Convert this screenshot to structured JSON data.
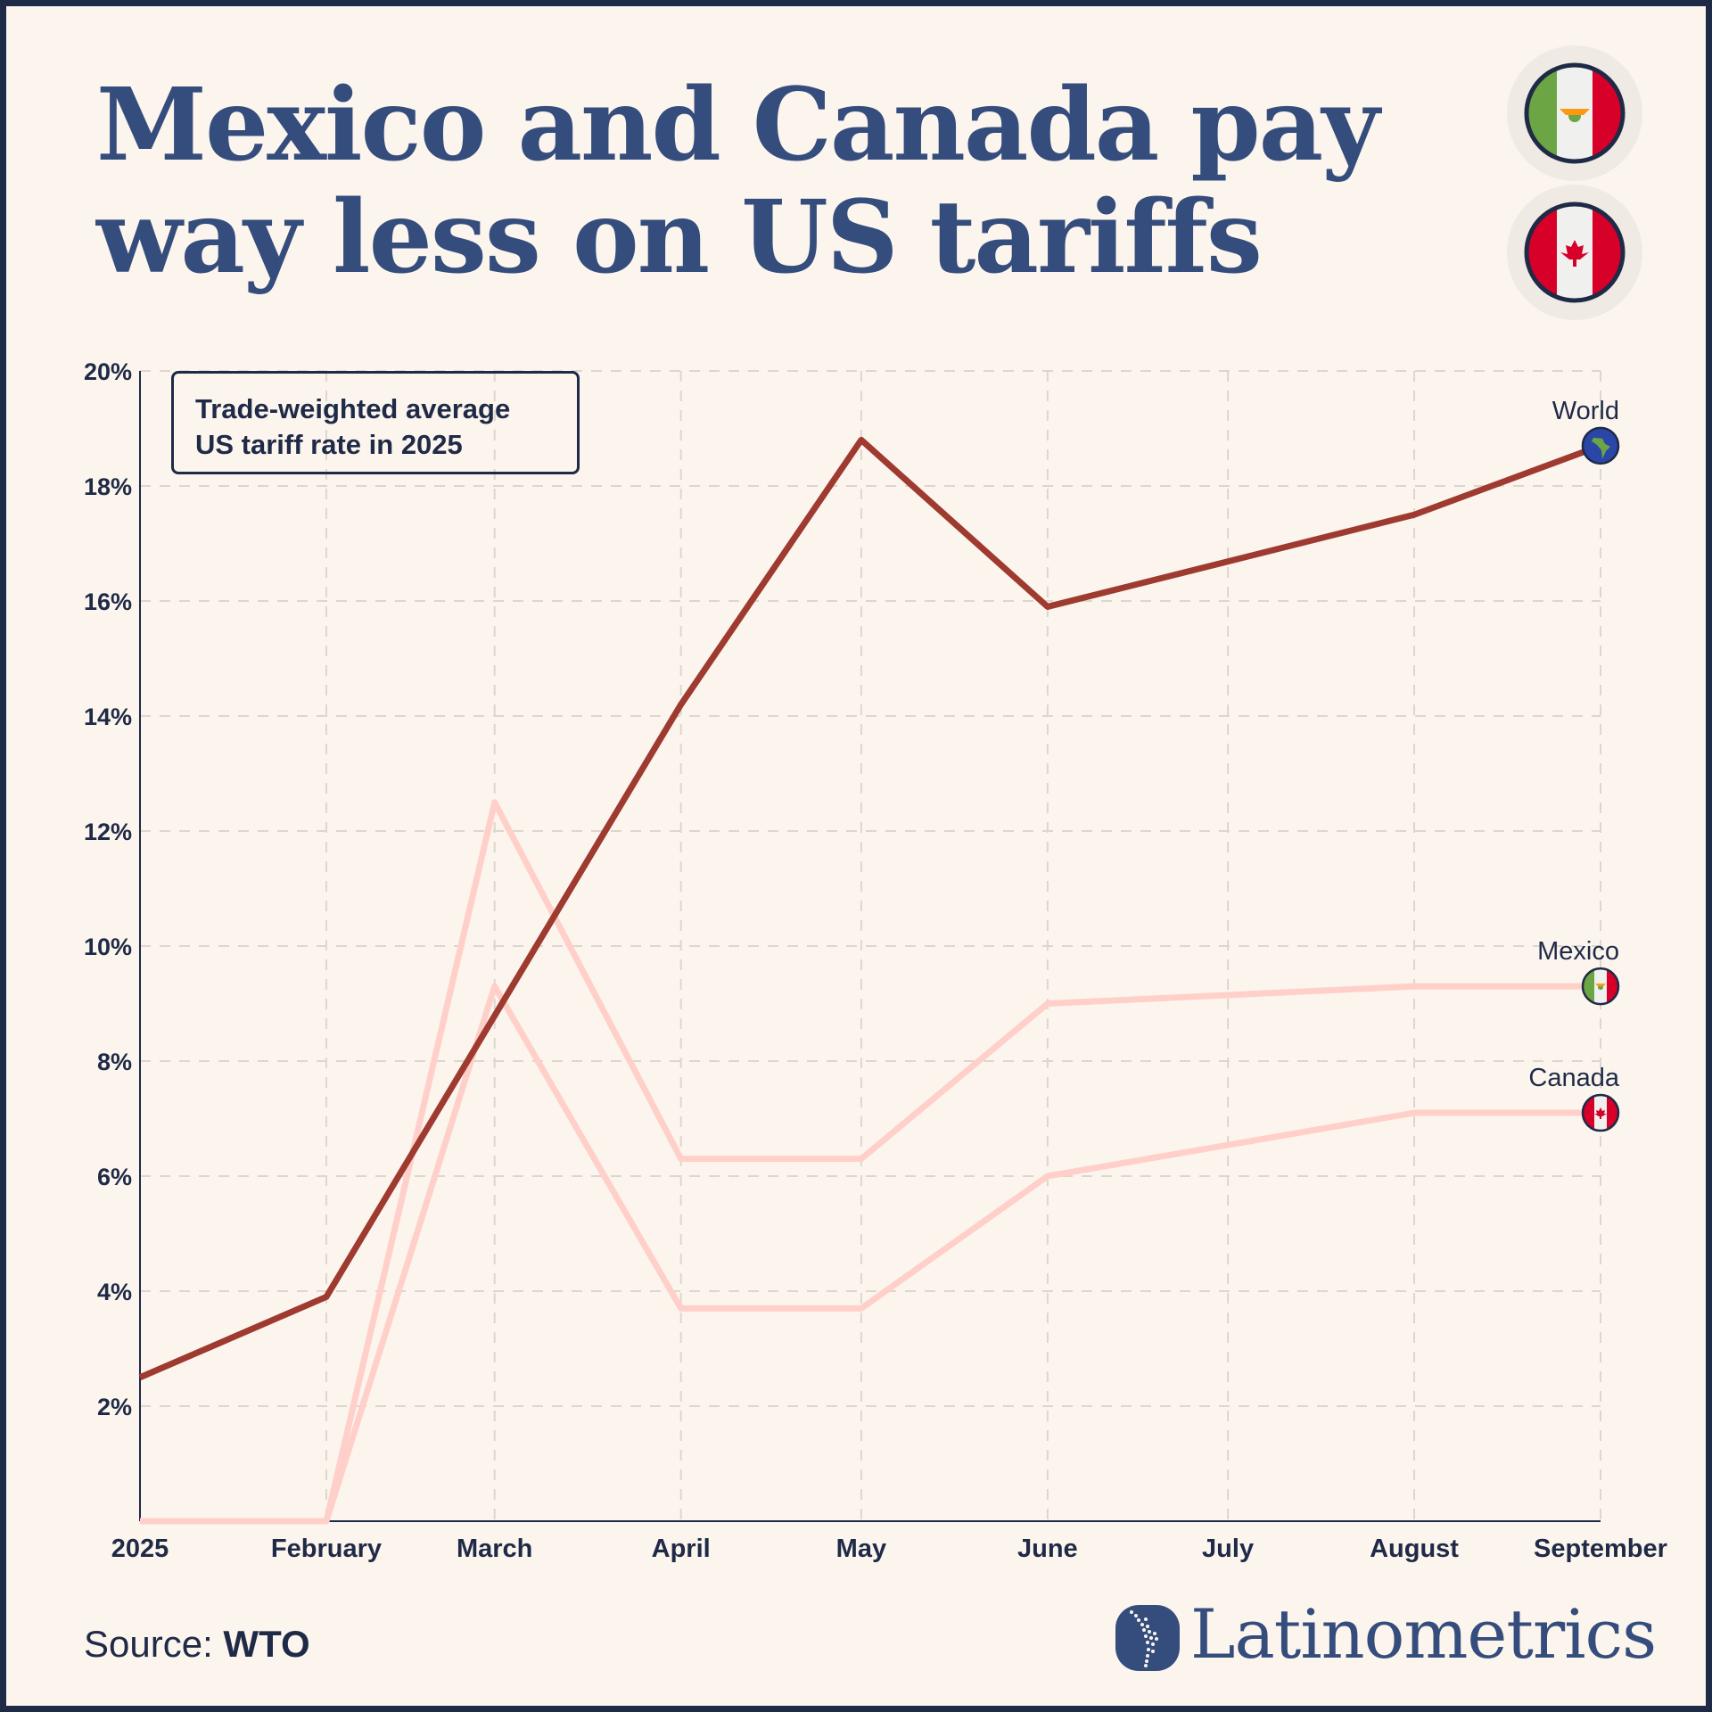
{
  "title": {
    "line1": "Mexico and Canada pay",
    "line2": "way less on US tariffs"
  },
  "header_flags": [
    {
      "icon": "mexico-flag-icon"
    },
    {
      "icon": "canada-flag-icon"
    }
  ],
  "legend_box": {
    "line1": "Trade-weighted average",
    "line2": "US tariff rate in 2025"
  },
  "source": {
    "label": "Source:",
    "value": "WTO"
  },
  "brand": {
    "name": "Latinometrics",
    "icon": "latin-america-dot-map-logo-icon"
  },
  "colors": {
    "background": "#fcf5ee",
    "frame": "#1f2a47",
    "title": "#354d7c",
    "world": "#9e3a2f",
    "mexico": "#ffd0c9",
    "canada": "#ffd0c9"
  },
  "chart_data": {
    "type": "line",
    "x_type": "date",
    "xlim": [
      "2025-01-01",
      "2025-09-01"
    ],
    "x_ticks": [
      {
        "date": "2025-01-01",
        "label": "2025"
      },
      {
        "date": "2025-02-01",
        "label": "February"
      },
      {
        "date": "2025-03-01",
        "label": "March"
      },
      {
        "date": "2025-04-01",
        "label": "April"
      },
      {
        "date": "2025-05-01",
        "label": "May"
      },
      {
        "date": "2025-06-01",
        "label": "June"
      },
      {
        "date": "2025-07-01",
        "label": "July"
      },
      {
        "date": "2025-08-01",
        "label": "August"
      },
      {
        "date": "2025-09-01",
        "label": "September"
      }
    ],
    "ylim": [
      0,
      20
    ],
    "y_ticks": [
      2,
      4,
      6,
      8,
      10,
      12,
      14,
      16,
      18,
      20
    ],
    "y_tick_labels": [
      "2%",
      "4%",
      "6%",
      "8%",
      "10%",
      "12%",
      "14%",
      "16%",
      "18%",
      "20%"
    ],
    "grid": true,
    "series": [
      {
        "name": "Mexico",
        "color": "#ffd0c9",
        "end_icon": "mexico-flag-icon",
        "x": [
          "2025-01-01",
          "2025-02-01",
          "2025-03-01",
          "2025-04-01",
          "2025-05-01",
          "2025-06-01",
          "2025-08-01",
          "2025-09-01"
        ],
        "y": [
          0,
          0,
          12.5,
          6.3,
          6.3,
          9.0,
          9.3,
          9.3
        ]
      },
      {
        "name": "Canada",
        "color": "#ffd0c9",
        "end_icon": "canada-flag-icon",
        "x": [
          "2025-01-01",
          "2025-02-01",
          "2025-03-01",
          "2025-04-01",
          "2025-05-01",
          "2025-06-01",
          "2025-08-01",
          "2025-09-01"
        ],
        "y": [
          0,
          0,
          9.3,
          3.7,
          3.7,
          6.0,
          7.1,
          7.1
        ]
      },
      {
        "name": "World",
        "color": "#9e3a2f",
        "end_icon": "globe-icon",
        "x": [
          "2025-01-01",
          "2025-02-01",
          "2025-04-01",
          "2025-05-01",
          "2025-06-01",
          "2025-08-01",
          "2025-09-01"
        ],
        "y": [
          2.5,
          3.9,
          14.2,
          18.8,
          15.9,
          17.5,
          18.7
        ]
      }
    ]
  }
}
